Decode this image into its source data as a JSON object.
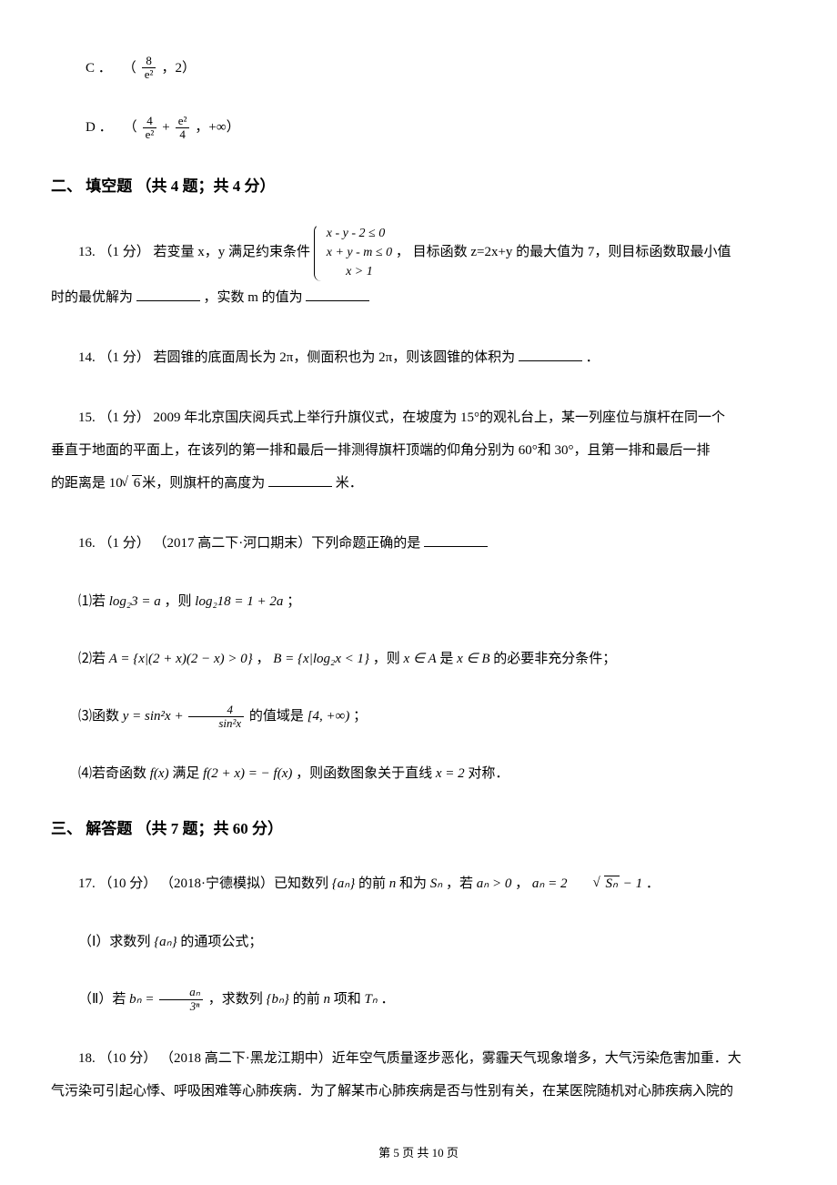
{
  "choices": {
    "c": {
      "label": "C ．",
      "open": "（",
      "comma": " ，2）"
    },
    "d": {
      "label": "D ．",
      "open": "（",
      "plus": " + ",
      "comma": " ，+∞）"
    }
  },
  "fracs": {
    "c1": {
      "num": "8",
      "den": "e²"
    },
    "d1": {
      "num": "4",
      "den": "e²"
    },
    "d2": {
      "num": "e²",
      "den": "4"
    }
  },
  "section2": {
    "title": "二、 填空题 （共 4 题；共 4 分）"
  },
  "q13": {
    "pre": "13. （1 分） 若变量 x，y 满足约束条件",
    "sys1": "x - y - 2 ≤ 0",
    "sys2": "x + y - m ≤ 0",
    "sys3": "x > 1",
    "post1": " ， 目标函数 z=2x+y 的最大值为 7，则目标函数取最小值",
    "line2a": "时的最优解为",
    "line2b": " ，实数 m 的值为"
  },
  "q14": {
    "text": "14. （1 分） 若圆锥的底面周长为 2π，侧面积也为 2π，则该圆锥的体积为",
    "tail": " ．"
  },
  "q15": {
    "l1": "15. （1 分） 2009 年北京国庆阅兵式上举行升旗仪式，在坡度为 15°的观礼台上，某一列座位与旗杆在同一个",
    "l2": "垂直于地面的平面上，在该列的第一排和最后一排测得旗杆顶端的仰角分别为 60°和 30°，且第一排和最后一排",
    "l3a": "的距离是 10",
    "sqrt": "6",
    "l3b": "米，则旗杆的高度为",
    "l3c": " 米．"
  },
  "q16": {
    "head": "16. （1 分） （2017 高二下·河口期末）下列命题正确的是",
    "s1a": "⑴若 ",
    "s1m1": "log₂3 = a",
    "s1b": " ，则 ",
    "s1m2": "log₂18 = 1 + 2a",
    "s1c": " ；",
    "s2a": "⑵若 ",
    "s2m1": "A = {x|(2 + x)(2 − x) > 0}",
    "s2b": " ， ",
    "s2m2": "B = {x|log₂x < 1}",
    "s2c": " ，则 ",
    "s2m3": "x ∈ A",
    "s2d": " 是 ",
    "s2m4": "x ∈ B",
    "s2e": " 的必要非充分条件；",
    "s3a": "⑶函数 ",
    "s3num": "4",
    "s3den": "sin²x",
    "s3pre": "y = sin²x + ",
    "s3b": " 的值域是 ",
    "s3m2": "[4, +∞)",
    "s3c": " ；",
    "s4a": "⑷若奇函数 ",
    "s4m1": "f(x)",
    "s4b": " 满足 ",
    "s4m2": "f(2 + x) = − f(x)",
    "s4c": " ，则函数图象关于直线 ",
    "s4m3": "x = 2",
    "s4d": " 对称．"
  },
  "section3": {
    "title": "三、 解答题 （共 7 题；共 60 分）"
  },
  "q17": {
    "head1": "17. （10 分） （2018·宁德模拟）已知数列 ",
    "an": "{aₙ}",
    "head2": " 的前 ",
    "n": "n",
    "head3": " 和为 ",
    "sn": "Sₙ",
    "head4": " ，若 ",
    "cond1": "aₙ > 0",
    "head5": " ， ",
    "cond2pre": "aₙ = 2",
    "cond2sqrt": "Sₙ",
    "cond2post": " − 1",
    "head6": " ．",
    "p1a": "（Ⅰ）求数列 ",
    "p1b": " 的通项公式；",
    "p2a": "（Ⅱ）若 ",
    "bneq_num": "aₙ",
    "bneq_den": "3ⁿ",
    "bneq_pre": "bₙ = ",
    "p2b": " ，求数列 ",
    "bn": "{bₙ}",
    "p2c": " 的前 ",
    "p2d": " 项和 ",
    "tn": "Tₙ",
    "p2e": " ．"
  },
  "q18": {
    "l1": "18. （10 分） （2018 高二下·黑龙江期中）近年空气质量逐步恶化，雾霾天气现象增多，大气污染危害加重．大",
    "l2": "气污染可引起心悸、呼吸困难等心肺疾病．为了解某市心肺疾病是否与性别有关，在某医院随机对心肺疾病入院的"
  },
  "footer": {
    "text": "第 5 页 共 10 页"
  }
}
